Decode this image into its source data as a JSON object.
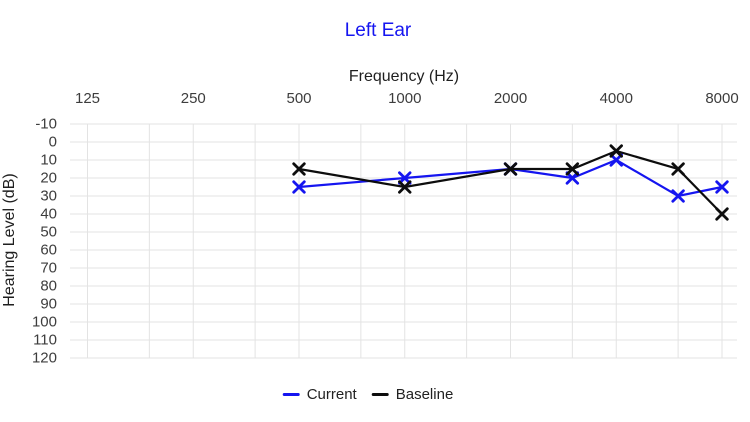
{
  "chart_data": {
    "type": "line",
    "title": "Left Ear",
    "xlabel": "Frequency (Hz)",
    "ylabel": "Hearing Level (dB)",
    "x_scale": "log2",
    "x_tick_labels": [
      "125",
      "250",
      "500",
      "1000",
      "2000",
      "4000",
      "8000"
    ],
    "x_tick_values": [
      125,
      250,
      500,
      1000,
      2000,
      4000,
      8000
    ],
    "x_gridline_values": [
      125,
      187.5,
      250,
      375,
      500,
      750,
      1000,
      1500,
      2000,
      3000,
      4000,
      6000,
      8000
    ],
    "y_tick_values": [
      -10,
      0,
      10,
      20,
      30,
      40,
      50,
      60,
      70,
      80,
      90,
      100,
      110,
      120
    ],
    "ylim": [
      -10,
      120
    ],
    "y_axis_inverted": true,
    "grid": true,
    "marker": "x",
    "legend_position": "bottom",
    "series": [
      {
        "name": "Current",
        "color": "#1515f0",
        "x": [
          500,
          1000,
          2000,
          3000,
          4000,
          6000,
          8000
        ],
        "y": [
          25,
          20,
          15,
          20,
          10,
          30,
          25
        ]
      },
      {
        "name": "Baseline",
        "color": "#0d0d0d",
        "x": [
          500,
          1000,
          2000,
          3000,
          4000,
          6000,
          8000
        ],
        "y": [
          15,
          25,
          15,
          15,
          5,
          15,
          40
        ]
      }
    ],
    "colors": {
      "title": "#1515f0",
      "grid": "#e3e3e3",
      "tick_text": "#3d3d3d",
      "axis_title_text": "#1f1f1f"
    }
  }
}
